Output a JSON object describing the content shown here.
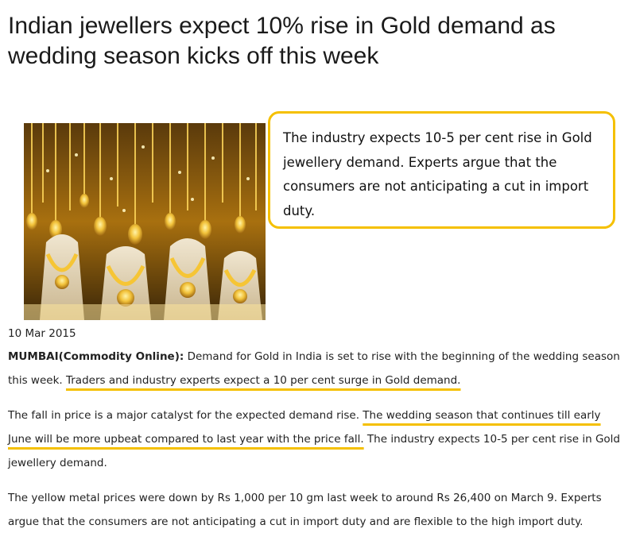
{
  "article": {
    "headline": "Indian jewellers expect 10% rise in Gold demand as wedding season kicks off this week",
    "date": "10 Mar 2015",
    "callout": "The industry expects 10-5 per cent rise in Gold jewellery demand. Experts argue that the consumers are not anticipating a cut in import duty.",
    "image_alt": "Gold jewellery necklaces on display",
    "paragraphs": {
      "p1": {
        "source": "MUMBAI(Commodity Online):",
        "text_before": " Demand for Gold in India is set to rise with the beginning of the wedding season this week. ",
        "highlight": "Traders and industry experts expect a 10 per cent surge in Gold demand."
      },
      "p2": {
        "text_before": "The fall in price is a major catalyst for the expected demand rise. ",
        "highlight": "The wedding season that continues till early June will be more upbeat compared to last year with the price fall.",
        "text_after": " The industry expects 10-5 per cent rise in Gold jewellery demand."
      },
      "p3": {
        "text": "The yellow metal prices were down by Rs 1,000 per 10 gm last week to around Rs 26,400 on March 9. Experts argue that the consumers are not anticipating a cut in import duty and are flexible to the high import duty."
      }
    }
  },
  "colors": {
    "accent": "#f5c000",
    "gold": "#e0a81c",
    "text": "#222222"
  }
}
